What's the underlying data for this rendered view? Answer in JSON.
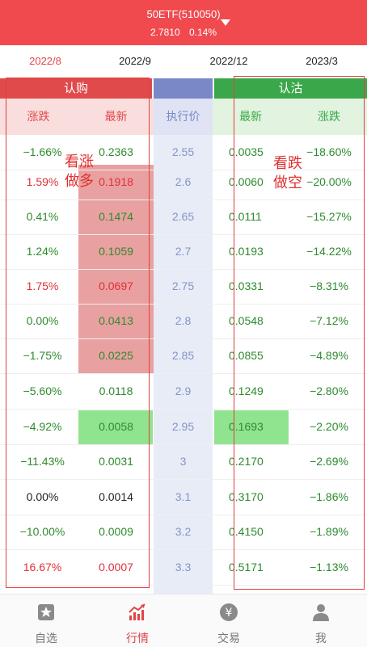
{
  "header": {
    "title": "50ETF(510050)",
    "price": "2.7810",
    "change": "0.14%"
  },
  "tabs": [
    "2022/8",
    "2022/9",
    "2022/12",
    "2023/3"
  ],
  "groups": {
    "call": "认购",
    "put": "认沽"
  },
  "columns": {
    "call_change": "涨跌",
    "call_latest": "最新",
    "strike": "执行价",
    "put_latest": "最新",
    "put_change": "涨跌"
  },
  "annotations": {
    "call": [
      "看涨",
      "做多"
    ],
    "put": [
      "看跌",
      "做空"
    ]
  },
  "rows": [
    {
      "call_change": "−1.66%",
      "call_latest": "0.2363",
      "strike": "2.55",
      "put_latest": "0.0035",
      "put_change": "−18.60%"
    },
    {
      "call_change": "1.59%",
      "call_latest": "0.1918",
      "strike": "2.6",
      "put_latest": "0.0060",
      "put_change": "−20.00%"
    },
    {
      "call_change": "0.41%",
      "call_latest": "0.1474",
      "strike": "2.65",
      "put_latest": "0.0111",
      "put_change": "−15.27%"
    },
    {
      "call_change": "1.24%",
      "call_latest": "0.1059",
      "strike": "2.7",
      "put_latest": "0.0193",
      "put_change": "−14.22%"
    },
    {
      "call_change": "1.75%",
      "call_latest": "0.0697",
      "strike": "2.75",
      "put_latest": "0.0331",
      "put_change": "−8.31%"
    },
    {
      "call_change": "0.00%",
      "call_latest": "0.0413",
      "strike": "2.8",
      "put_latest": "0.0548",
      "put_change": "−7.12%"
    },
    {
      "call_change": "−1.75%",
      "call_latest": "0.0225",
      "strike": "2.85",
      "put_latest": "0.0855",
      "put_change": "−4.89%"
    },
    {
      "call_change": "−5.60%",
      "call_latest": "0.0118",
      "strike": "2.9",
      "put_latest": "0.1249",
      "put_change": "−2.80%"
    },
    {
      "call_change": "−4.92%",
      "call_latest": "0.0058",
      "strike": "2.95",
      "put_latest": "0.1693",
      "put_change": "−2.20%"
    },
    {
      "call_change": "−11.43%",
      "call_latest": "0.0031",
      "strike": "3",
      "put_latest": "0.2170",
      "put_change": "−2.69%"
    },
    {
      "call_change": "0.00%",
      "call_latest": "0.0014",
      "strike": "3.1",
      "put_latest": "0.3170",
      "put_change": "−1.86%"
    },
    {
      "call_change": "−10.00%",
      "call_latest": "0.0009",
      "strike": "3.2",
      "put_latest": "0.4150",
      "put_change": "−1.89%"
    },
    {
      "call_change": "16.67%",
      "call_latest": "0.0007",
      "strike": "3.3",
      "put_latest": "0.5171",
      "put_change": "−1.13%"
    }
  ],
  "nav": [
    {
      "label": "自选",
      "icon": "star-icon"
    },
    {
      "label": "行情",
      "icon": "chart-icon"
    },
    {
      "label": "交易",
      "icon": "yen-icon"
    },
    {
      "label": "我",
      "icon": "person-icon"
    }
  ],
  "colors": {
    "accent": "#f04a4f",
    "call_header": "#e04a4a",
    "put_header": "#3aa84a",
    "strike_header": "#7a88c8"
  }
}
